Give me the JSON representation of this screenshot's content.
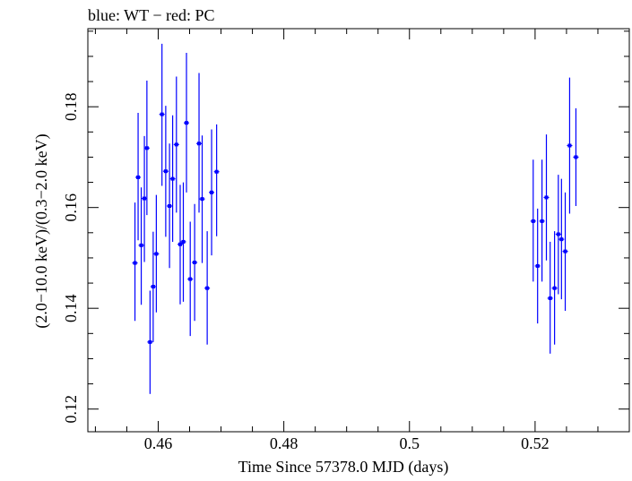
{
  "header_note": "blue: WT − red: PC",
  "chart_data": {
    "type": "scatter",
    "title": "",
    "xlabel": "Time Since 57378.0 MJD (days)",
    "ylabel": "(2.0−10.0 keV)/(0.3−2.0 keV)",
    "xlim": [
      0.4488,
      0.535
    ],
    "ylim": [
      0.1155,
      0.1955
    ],
    "x_ticks": [
      0.46,
      0.48,
      0.5,
      0.52
    ],
    "x_tick_labels": [
      "0.46",
      "0.48",
      "0.5",
      "0.52"
    ],
    "y_ticks": [
      0.12,
      0.14,
      0.16,
      0.18
    ],
    "y_tick_labels": [
      "0.12",
      "0.14",
      "0.16",
      "0.18"
    ],
    "grid": false,
    "legend": "none",
    "colors": {
      "wt": "#0000ff",
      "pc": "#ff0000",
      "axes": "#000000"
    },
    "series": [
      {
        "points": [
          {
            "x": 0.4563,
            "y": 0.149,
            "ylo": 0.1375,
            "yhi": 0.161
          },
          {
            "x": 0.4568,
            "y": 0.166,
            "ylo": 0.1535,
            "yhi": 0.1788
          },
          {
            "x": 0.4573,
            "y": 0.1525,
            "ylo": 0.1407,
            "yhi": 0.164
          },
          {
            "x": 0.4578,
            "y": 0.1618,
            "ylo": 0.1492,
            "yhi": 0.1742
          },
          {
            "x": 0.4582,
            "y": 0.1718,
            "ylo": 0.1585,
            "yhi": 0.1852
          },
          {
            "x": 0.4587,
            "y": 0.1333,
            "ylo": 0.123,
            "yhi": 0.1435
          },
          {
            "x": 0.4592,
            "y": 0.1443,
            "ylo": 0.1333,
            "yhi": 0.1552
          },
          {
            "x": 0.4597,
            "y": 0.1508,
            "ylo": 0.1392,
            "yhi": 0.1625
          },
          {
            "x": 0.4606,
            "y": 0.1785,
            "ylo": 0.1643,
            "yhi": 0.1925
          },
          {
            "x": 0.4612,
            "y": 0.1672,
            "ylo": 0.1542,
            "yhi": 0.1802
          },
          {
            "x": 0.4618,
            "y": 0.1603,
            "ylo": 0.148,
            "yhi": 0.1727
          },
          {
            "x": 0.4623,
            "y": 0.1657,
            "ylo": 0.1532,
            "yhi": 0.1783
          },
          {
            "x": 0.4629,
            "y": 0.1725,
            "ylo": 0.159,
            "yhi": 0.186
          },
          {
            "x": 0.4635,
            "y": 0.1527,
            "ylo": 0.1408,
            "yhi": 0.1645
          },
          {
            "x": 0.464,
            "y": 0.1532,
            "ylo": 0.1413,
            "yhi": 0.165
          },
          {
            "x": 0.4645,
            "y": 0.1768,
            "ylo": 0.163,
            "yhi": 0.1907
          },
          {
            "x": 0.4651,
            "y": 0.1458,
            "ylo": 0.1345,
            "yhi": 0.1572
          },
          {
            "x": 0.4658,
            "y": 0.1491,
            "ylo": 0.1375,
            "yhi": 0.1607
          },
          {
            "x": 0.4665,
            "y": 0.1727,
            "ylo": 0.159,
            "yhi": 0.1867
          },
          {
            "x": 0.467,
            "y": 0.1617,
            "ylo": 0.149,
            "yhi": 0.1743
          },
          {
            "x": 0.4678,
            "y": 0.144,
            "ylo": 0.1328,
            "yhi": 0.1553
          },
          {
            "x": 0.4685,
            "y": 0.163,
            "ylo": 0.1505,
            "yhi": 0.1755
          },
          {
            "x": 0.4693,
            "y": 0.1671,
            "ylo": 0.1543,
            "yhi": 0.1765
          },
          {
            "x": 0.5197,
            "y": 0.1573,
            "ylo": 0.1453,
            "yhi": 0.1695
          },
          {
            "x": 0.5204,
            "y": 0.1484,
            "ylo": 0.137,
            "yhi": 0.1598
          },
          {
            "x": 0.5211,
            "y": 0.1573,
            "ylo": 0.1453,
            "yhi": 0.1695
          },
          {
            "x": 0.5218,
            "y": 0.162,
            "ylo": 0.1495,
            "yhi": 0.1745
          },
          {
            "x": 0.5224,
            "y": 0.142,
            "ylo": 0.131,
            "yhi": 0.1532
          },
          {
            "x": 0.5231,
            "y": 0.144,
            "ylo": 0.1328,
            "yhi": 0.1553
          },
          {
            "x": 0.5237,
            "y": 0.1547,
            "ylo": 0.1428,
            "yhi": 0.1665
          },
          {
            "x": 0.5242,
            "y": 0.1537,
            "ylo": 0.1418,
            "yhi": 0.1657
          },
          {
            "x": 0.5248,
            "y": 0.1513,
            "ylo": 0.1395,
            "yhi": 0.163
          },
          {
            "x": 0.5255,
            "y": 0.1723,
            "ylo": 0.1588,
            "yhi": 0.1858
          },
          {
            "x": 0.5265,
            "y": 0.17,
            "ylo": 0.1603,
            "yhi": 0.1797
          }
        ]
      }
    ]
  }
}
